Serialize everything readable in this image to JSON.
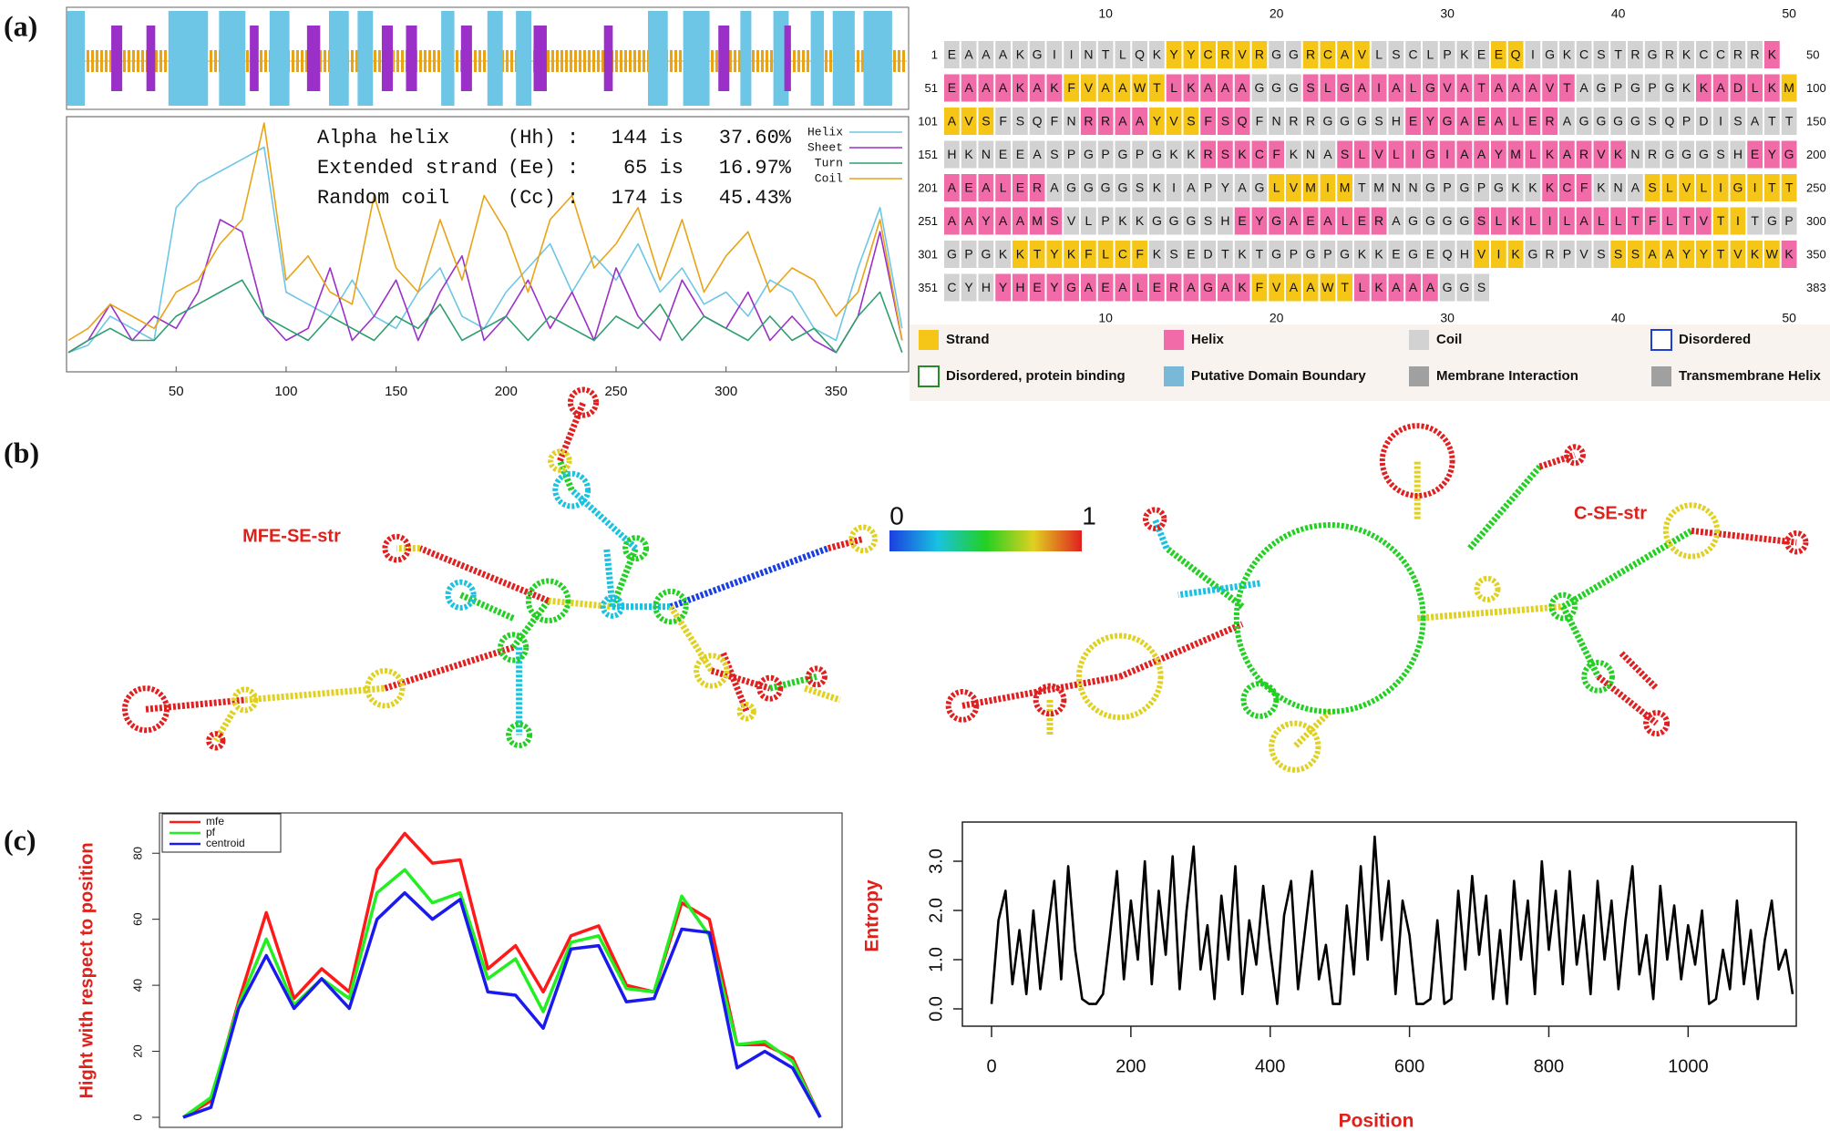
{
  "panel_labels": [
    "(a)",
    "(b)",
    "(c)"
  ],
  "chart_data": [
    {
      "type": "line",
      "x": [
        1,
        10,
        20,
        30,
        40,
        50,
        60,
        70,
        80,
        90,
        100,
        110,
        120,
        130,
        140,
        150,
        160,
        170,
        180,
        190,
        200,
        210,
        220,
        230,
        240,
        250,
        260,
        270,
        280,
        290,
        300,
        310,
        320,
        330,
        340,
        350,
        360,
        370,
        380
      ],
      "xlim": [
        1,
        383
      ],
      "xticks": [
        50,
        100,
        150,
        200,
        250,
        300,
        350
      ],
      "ylim": [
        0,
        1
      ],
      "series": [
        {
          "name": "Helix",
          "color": "#6ec6e6",
          "values": [
            0.05,
            0.08,
            0.2,
            0.15,
            0.1,
            0.65,
            0.75,
            0.8,
            0.85,
            0.9,
            0.3,
            0.25,
            0.2,
            0.35,
            0.2,
            0.15,
            0.3,
            0.4,
            0.2,
            0.15,
            0.3,
            0.4,
            0.5,
            0.3,
            0.45,
            0.35,
            0.5,
            0.3,
            0.4,
            0.25,
            0.3,
            0.2,
            0.35,
            0.3,
            0.15,
            0.1,
            0.4,
            0.65,
            0.15
          ],
          "ranges": [
            [
              1,
              8
            ],
            [
              47,
              64
            ],
            [
              70,
              81
            ],
            [
              93,
              101
            ],
            [
              120,
              128
            ],
            [
              133,
              139
            ],
            [
              171,
              176
            ],
            [
              192,
              198
            ],
            [
              205,
              211
            ],
            [
              265,
              273
            ],
            [
              281,
              292
            ],
            [
              307,
              311
            ],
            [
              322,
              328
            ],
            [
              339,
              344
            ],
            [
              349,
              358
            ],
            [
              363,
              375
            ]
          ]
        },
        {
          "name": "Sheet",
          "color": "#9b30c8",
          "values": [
            0.05,
            0.1,
            0.25,
            0.1,
            0.2,
            0.15,
            0.3,
            0.6,
            0.55,
            0.2,
            0.1,
            0.15,
            0.4,
            0.1,
            0.2,
            0.35,
            0.1,
            0.3,
            0.45,
            0.1,
            0.2,
            0.35,
            0.15,
            0.3,
            0.1,
            0.4,
            0.2,
            0.1,
            0.35,
            0.2,
            0.15,
            0.3,
            0.1,
            0.2,
            0.1,
            0.05,
            0.2,
            0.55,
            0.1
          ],
          "ranges": [
            [
              21,
              25
            ],
            [
              37,
              40
            ],
            [
              84,
              87
            ],
            [
              110,
              115
            ],
            [
              144,
              148
            ],
            [
              155,
              159
            ],
            [
              180,
              184
            ],
            [
              213,
              218
            ],
            [
              245,
              248
            ],
            [
              297,
              301
            ],
            [
              327,
              329
            ]
          ]
        },
        {
          "name": "Turn",
          "color": "#2e9e6e",
          "values": [
            0.05,
            0.1,
            0.15,
            0.1,
            0.1,
            0.2,
            0.25,
            0.3,
            0.35,
            0.2,
            0.15,
            0.1,
            0.2,
            0.15,
            0.1,
            0.2,
            0.15,
            0.25,
            0.1,
            0.15,
            0.2,
            0.1,
            0.2,
            0.15,
            0.1,
            0.2,
            0.15,
            0.25,
            0.1,
            0.2,
            0.15,
            0.1,
            0.2,
            0.1,
            0.15,
            0.05,
            0.2,
            0.3,
            0.05
          ]
        },
        {
          "name": "Coil",
          "color": "#e8a317",
          "values": [
            0.1,
            0.15,
            0.25,
            0.2,
            0.15,
            0.3,
            0.35,
            0.5,
            0.6,
            1.0,
            0.35,
            0.45,
            0.3,
            0.25,
            0.7,
            0.4,
            0.3,
            0.6,
            0.35,
            0.7,
            0.55,
            0.3,
            0.6,
            0.7,
            0.4,
            0.5,
            0.65,
            0.35,
            0.6,
            0.3,
            0.45,
            0.55,
            0.3,
            0.4,
            0.35,
            0.2,
            0.3,
            0.6,
            0.1
          ]
        }
      ],
      "annotations": [
        {
          "name": "Alpha helix",
          "code": "(Hh)",
          "code_color": "#1f3fd0",
          "sep": ":",
          "count": "144 is",
          "percent": "37.60%"
        },
        {
          "name": "Extended strand",
          "code": "(Ee)",
          "code_color": "#e0201a",
          "sep": ":",
          "count": "65 is",
          "percent": "16.97%"
        },
        {
          "name": "Random coil",
          "code": "(Cc)",
          "code_color": "#e8a317",
          "sep": ":",
          "count": "174 is",
          "percent": "45.43%"
        }
      ]
    },
    {
      "type": "line",
      "x": [
        0,
        50,
        100,
        150,
        200,
        250,
        300,
        350,
        400,
        450,
        500,
        550,
        600,
        650,
        700,
        750,
        800,
        850,
        900,
        950,
        1000,
        1050,
        1100,
        1150
      ],
      "xlim": [
        0,
        1150
      ],
      "ylim": [
        0,
        90
      ],
      "yticks": [
        0,
        20,
        40,
        60,
        80
      ],
      "ylabel": "Hight with respect to position",
      "series": [
        {
          "name": "mfe",
          "color": "#ff1a1a",
          "values": [
            0,
            5,
            35,
            62,
            36,
            45,
            38,
            75,
            86,
            77,
            78,
            45,
            52,
            38,
            55,
            58,
            40,
            38,
            65,
            60,
            22,
            22,
            18,
            0
          ]
        },
        {
          "name": "pf",
          "color": "#22ee22",
          "values": [
            0,
            6,
            34,
            54,
            34,
            42,
            36,
            68,
            75,
            65,
            68,
            42,
            48,
            32,
            53,
            55,
            39,
            38,
            67,
            55,
            22,
            23,
            17,
            0
          ]
        },
        {
          "name": "centroid",
          "color": "#1a1aee",
          "values": [
            0,
            3,
            33,
            49,
            33,
            42,
            33,
            60,
            68,
            60,
            66,
            38,
            37,
            27,
            51,
            52,
            35,
            36,
            57,
            56,
            15,
            20,
            15,
            0
          ]
        }
      ]
    },
    {
      "type": "line",
      "x": [
        0,
        10,
        20,
        30,
        40,
        50,
        60,
        70,
        80,
        90,
        100,
        110,
        120,
        130,
        140,
        150,
        160,
        170,
        180,
        190,
        200,
        210,
        220,
        230,
        240,
        250,
        260,
        270,
        280,
        290,
        300,
        310,
        320,
        330,
        340,
        350,
        360,
        370,
        380,
        390,
        400,
        410,
        420,
        430,
        440,
        450,
        460,
        470,
        480,
        490,
        500,
        510,
        520,
        530,
        540,
        550,
        560,
        570,
        580,
        590,
        600,
        610,
        620,
        630,
        640,
        650,
        660,
        670,
        680,
        690,
        700,
        710,
        720,
        730,
        740,
        750,
        760,
        770,
        780,
        790,
        800,
        810,
        820,
        830,
        840,
        850,
        860,
        870,
        880,
        890,
        900,
        910,
        920,
        930,
        940,
        950,
        960,
        970,
        980,
        990,
        1000,
        1010,
        1020,
        1030,
        1040,
        1050,
        1060,
        1070,
        1080,
        1090,
        1100,
        1110,
        1120,
        1130,
        1140,
        1150
      ],
      "xlim": [
        0,
        1150
      ],
      "xticks": [
        0,
        200,
        400,
        600,
        800,
        1000
      ],
      "ylim": [
        -0.1,
        3.6
      ],
      "yticks": [
        {
          "value": 0,
          "label": "0.0"
        },
        {
          "value": 1,
          "label": "1.0"
        },
        {
          "value": 2,
          "label": "2.0"
        },
        {
          "value": 3,
          "label": "3.0"
        }
      ],
      "xlabel": "Position",
      "ylabel": "Entropy",
      "series": [
        {
          "name": "Entropy",
          "color": "#000000",
          "values": [
            0.1,
            1.8,
            2.4,
            0.5,
            1.6,
            0.3,
            2.0,
            0.4,
            1.5,
            2.6,
            0.6,
            2.9,
            1.2,
            0.2,
            0.1,
            0.1,
            0.3,
            1.5,
            2.8,
            0.6,
            2.2,
            1.0,
            3.0,
            0.5,
            2.4,
            1.1,
            3.1,
            0.4,
            2.0,
            3.3,
            0.8,
            1.7,
            0.2,
            2.3,
            1.0,
            2.9,
            0.3,
            1.8,
            0.9,
            2.5,
            1.2,
            0.1,
            1.9,
            2.6,
            0.4,
            1.6,
            2.8,
            0.6,
            1.3,
            0.1,
            0.1,
            2.1,
            0.7,
            2.9,
            1.0,
            3.5,
            1.4,
            2.6,
            0.3,
            2.2,
            1.5,
            0.1,
            0.1,
            0.2,
            1.8,
            0.1,
            0.2,
            2.4,
            0.8,
            2.7,
            1.1,
            2.3,
            0.2,
            1.6,
            0.1,
            2.6,
            1.0,
            2.2,
            0.3,
            3.0,
            1.2,
            2.4,
            0.5,
            2.8,
            0.9,
            1.9,
            0.3,
            2.6,
            1.0,
            2.2,
            0.4,
            1.8,
            2.9,
            0.7,
            1.5,
            0.2,
            2.5,
            1.0,
            2.1,
            0.6,
            1.7,
            0.9,
            2.0,
            0.1,
            0.2,
            1.2,
            0.4,
            2.2,
            0.5,
            1.6,
            0.2,
            1.4,
            2.2,
            0.8,
            1.2,
            0.3
          ]
        }
      ]
    }
  ],
  "sequence_table": {
    "column_ticks": [
      10,
      20,
      30,
      40,
      50
    ],
    "rows": [
      {
        "start": 1,
        "end": 50,
        "segments": [
          {
            "class": 2,
            "seq": "EAAAKGIINTLQK"
          },
          {
            "class": 0,
            "seq": "YYCRVR"
          },
          {
            "class": 2,
            "seq": "GG"
          },
          {
            "class": 0,
            "seq": "RCAV"
          },
          {
            "class": 2,
            "seq": "LSCLPKE"
          },
          {
            "class": 0,
            "seq": "EQ"
          },
          {
            "class": 2,
            "seq": "IGKCSTRGRKCCRR"
          },
          {
            "class": 1,
            "seq": "K"
          }
        ]
      },
      {
        "start": 51,
        "end": 100,
        "segments": [
          {
            "class": 1,
            "seq": "EAAAKAK"
          },
          {
            "class": 0,
            "seq": "FVAAWT"
          },
          {
            "class": 1,
            "seq": "LKAAA"
          },
          {
            "class": 2,
            "seq": "GGG"
          },
          {
            "class": 1,
            "seq": "SLGAIALGVATAAAVT"
          },
          {
            "class": 2,
            "seq": "AGPGPGK"
          },
          {
            "class": 1,
            "seq": "KADLK"
          },
          {
            "class": 0,
            "seq": "M"
          }
        ]
      },
      {
        "start": 101,
        "end": 150,
        "segments": [
          {
            "class": 0,
            "seq": "AVS"
          },
          {
            "class": 2,
            "seq": "FSQFN"
          },
          {
            "class": 1,
            "seq": "RRAA"
          },
          {
            "class": 0,
            "seq": "YVS"
          },
          {
            "class": 1,
            "seq": "FSQ"
          },
          {
            "class": 2,
            "seq": "FNRRGGGSH"
          },
          {
            "class": 1,
            "seq": "EYGAEALER"
          },
          {
            "class": 2,
            "seq": "AGGGGSQPDISATT"
          }
        ]
      },
      {
        "start": 151,
        "end": 200,
        "segments": [
          {
            "class": 2,
            "seq": "HKNEEASPGPGPGKK"
          },
          {
            "class": 1,
            "seq": "RSKCF"
          },
          {
            "class": 2,
            "seq": "KNA"
          },
          {
            "class": 1,
            "seq": "SLVLIGIAAYMLKARVK"
          },
          {
            "class": 2,
            "seq": "NRGGGSH"
          },
          {
            "class": 1,
            "seq": "EYG"
          }
        ]
      },
      {
        "start": 201,
        "end": 250,
        "segments": [
          {
            "class": 1,
            "seq": "AEALER"
          },
          {
            "class": 2,
            "seq": "AGGGGSKIAPYAG"
          },
          {
            "class": 0,
            "seq": "LVMIM"
          },
          {
            "class": 2,
            "seq": "TMNNGPGPGKK"
          },
          {
            "class": 1,
            "seq": "KCF"
          },
          {
            "class": 2,
            "seq": "KNA"
          },
          {
            "class": 0,
            "seq": "SLVLIGITT"
          }
        ]
      },
      {
        "start": 251,
        "end": 300,
        "segments": [
          {
            "class": 1,
            "seq": "AAYAAMS"
          },
          {
            "class": 2,
            "seq": "VLPKKGGGSH"
          },
          {
            "class": 1,
            "seq": "EYGAEALER"
          },
          {
            "class": 2,
            "seq": "AGGGG"
          },
          {
            "class": 1,
            "seq": "SLKLILALLTFLTV"
          },
          {
            "class": 0,
            "seq": "TI"
          },
          {
            "class": 2,
            "seq": "TGP"
          }
        ]
      },
      {
        "start": 301,
        "end": 350,
        "segments": [
          {
            "class": 2,
            "seq": "GPGK"
          },
          {
            "class": 0,
            "seq": "KTYKFLCF"
          },
          {
            "class": 2,
            "seq": "KSEDTKTGPGPGKKEGEQH"
          },
          {
            "class": 0,
            "seq": "VIK"
          },
          {
            "class": 2,
            "seq": "GRPVS"
          },
          {
            "class": 0,
            "seq": "SSAAYYTVKW"
          },
          {
            "class": 1,
            "seq": "K"
          }
        ]
      },
      {
        "start": 351,
        "end": 383,
        "segments": [
          {
            "class": 2,
            "seq": "CYH"
          },
          {
            "class": 1,
            "seq": "YHEYGAEALERAGAK"
          },
          {
            "class": 0,
            "seq": "FVAAWT"
          },
          {
            "class": 1,
            "seq": "LKAAA"
          },
          {
            "class": 2,
            "seq": "GGS"
          }
        ]
      }
    ],
    "legend": [
      {
        "name": "Strand",
        "fill": "#f5c518"
      },
      {
        "name": "Helix",
        "fill": "#f06ba8"
      },
      {
        "name": "Coil",
        "fill": "#d2d2d2"
      },
      {
        "name": "Disordered",
        "stroke": "#1f3fd0"
      },
      {
        "name": "Disordered, protein binding",
        "stroke": "#2a8a2a"
      },
      {
        "name": "Putative Domain Boundary",
        "fill": "#7ab8d8"
      },
      {
        "name": "Membrane Interaction",
        "fill": "#a0a0a0"
      },
      {
        "name": "Transmembrane Helix",
        "fill": "#a0a0a0"
      }
    ]
  },
  "rna_panel": {
    "structures": [
      "MFE-SE-str",
      "C-SE-str"
    ],
    "colorbar": {
      "ticks": [
        0,
        1
      ],
      "colors": [
        "#1a3fe0",
        "#19c2e0",
        "#22d022",
        "#e0d020",
        "#e02020"
      ]
    }
  }
}
